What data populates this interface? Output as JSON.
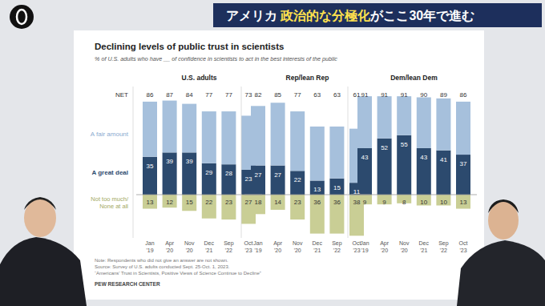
{
  "header": {
    "parts": [
      "アメリカ ",
      "政治的な分極化",
      "がここ30年で進む"
    ]
  },
  "note": "Note: Respondents who did not give an answer are not shown.",
  "source": "Source: Survey of U.S. adults conducted Sept. 25-Oct. 1, 2023.",
  "report": "“Americans’ Trust in Scientists, Positive Views of Science Continue to Decline”",
  "org": "PEW RESEARCH CENTER",
  "chart_data": {
    "type": "bar",
    "stacked": true,
    "data_labels": true,
    "tick_labels": "x",
    "grid": false,
    "title": "Declining levels of public trust in scientists",
    "subtitle": "% of U.S. adults who have __ of confidence in scientists to act in the best interests of the public",
    "categories": [
      "Jan '19",
      "Apr '20",
      "Nov '20",
      "Dec '21",
      "Sep '22",
      "Oct '23"
    ],
    "ylim": [
      -40,
      100
    ],
    "yticks": [
      0
    ],
    "net_label": "NET",
    "series": [
      {
        "name": "A great deal",
        "color": "#2c4a6e"
      },
      {
        "name": "A fair amount",
        "color": "#a6c0dc"
      },
      {
        "name": "Not too much/ None at all",
        "color": "#c9ce95"
      }
    ],
    "panels": [
      {
        "title": "U.S. adults",
        "net": [
          86,
          87,
          84,
          77,
          77,
          73
        ],
        "series": [
          {
            "values": [
              35,
              39,
              39,
              29,
              28,
              23
            ]
          },
          {
            "values": [
              51,
              48,
              45,
              48,
              49,
              50
            ]
          },
          {
            "values": [
              -13,
              -12,
              -15,
              -22,
              -23,
              -27
            ],
            "value_labels": [
              "13",
              "12",
              "15",
              "22",
              "23",
              "27"
            ]
          }
        ]
      },
      {
        "title": "Rep/lean Rep",
        "net": [
          82,
          85,
          77,
          63,
          63,
          61
        ],
        "series": [
          {
            "values": [
              27,
              27,
              22,
              13,
              15,
              11
            ]
          },
          {
            "values": [
              55,
              58,
              55,
              50,
              48,
              50
            ]
          },
          {
            "values": [
              -18,
              -14,
              -23,
              -36,
              -36,
              -38
            ],
            "value_labels": [
              "18",
              "14",
              "23",
              "36",
              "36",
              "38"
            ]
          }
        ]
      },
      {
        "title": "Dem/lean Dem",
        "net": [
          91,
          91,
          91,
          90,
          89,
          86
        ],
        "series": [
          {
            "values": [
              43,
              52,
              55,
              43,
              41,
              37
            ]
          },
          {
            "values": [
              48,
              39,
              36,
              47,
              48,
              49
            ]
          },
          {
            "values": [
              -9,
              -9,
              -8,
              -10,
              -10,
              -13
            ],
            "value_labels": [
              "9",
              "9",
              "8",
              "10",
              "10",
              "13"
            ]
          }
        ]
      }
    ]
  }
}
